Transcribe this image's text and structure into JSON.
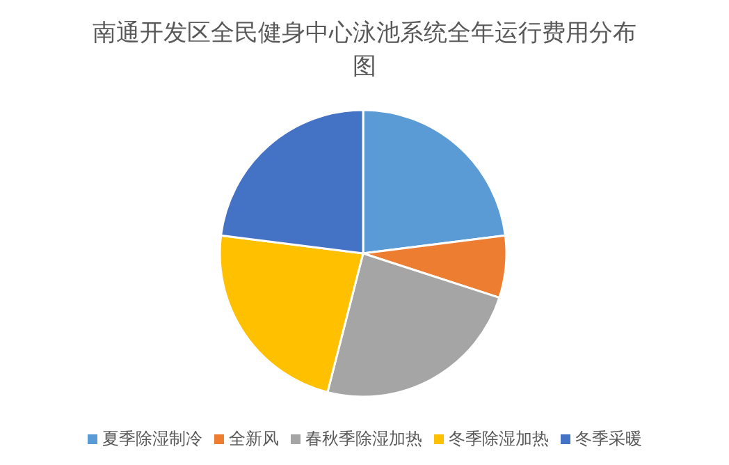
{
  "chart_data": {
    "type": "pie",
    "title": "南通开发区全民健身中心泳池系统全年运行费用分布图",
    "categories": [
      "夏季除湿制冷",
      "全新风",
      "春秋季除湿加热",
      "冬季除湿加热",
      "冬季采暖"
    ],
    "values": [
      23,
      7,
      24,
      23,
      23
    ],
    "colors": [
      "#5b9bd5",
      "#ed7d31",
      "#a5a5a5",
      "#ffc000",
      "#4472c4"
    ],
    "legend": "bottom"
  }
}
